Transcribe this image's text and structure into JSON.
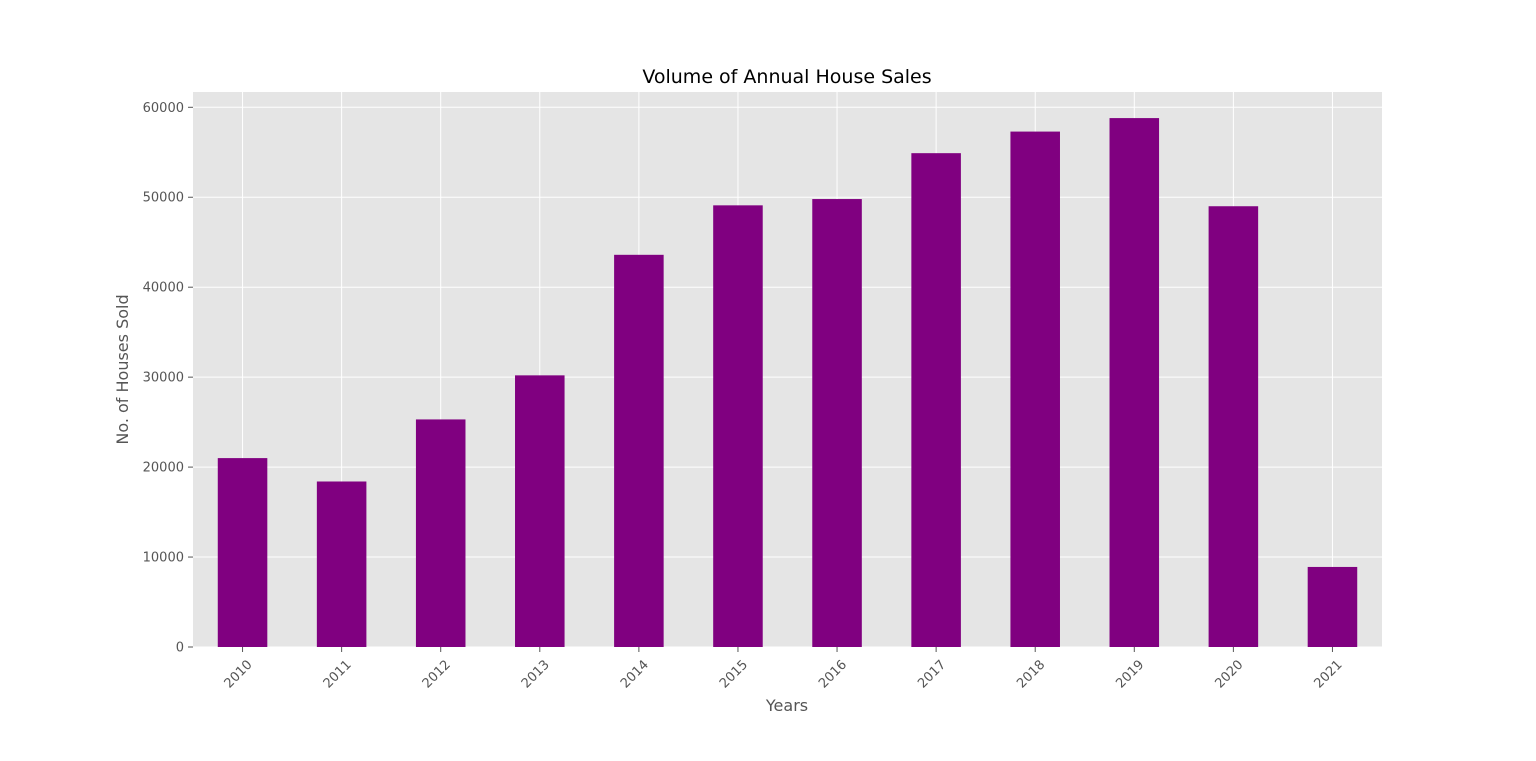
{
  "chart_data": {
    "type": "bar",
    "title": "Volume of Annual House Sales",
    "xlabel": "Years",
    "ylabel": "No. of Houses Sold",
    "categories": [
      "2010",
      "2011",
      "2012",
      "2013",
      "2014",
      "2015",
      "2016",
      "2017",
      "2018",
      "2019",
      "2020",
      "2021"
    ],
    "values": [
      21000,
      18400,
      25300,
      30200,
      43600,
      49100,
      49800,
      54900,
      57300,
      58800,
      49000,
      8900
    ],
    "ylim": [
      0,
      61700
    ],
    "yticks": [
      0,
      10000,
      20000,
      30000,
      40000,
      50000,
      60000
    ],
    "ytick_labels": [
      "0",
      "10000",
      "20000",
      "30000",
      "40000",
      "50000",
      "60000"
    ],
    "xtick_rotation": "45deg",
    "grid": true,
    "legend": "none",
    "bar_color": "#800080",
    "plot_background": "#e5e5e5",
    "grid_color": "#ffffff"
  }
}
